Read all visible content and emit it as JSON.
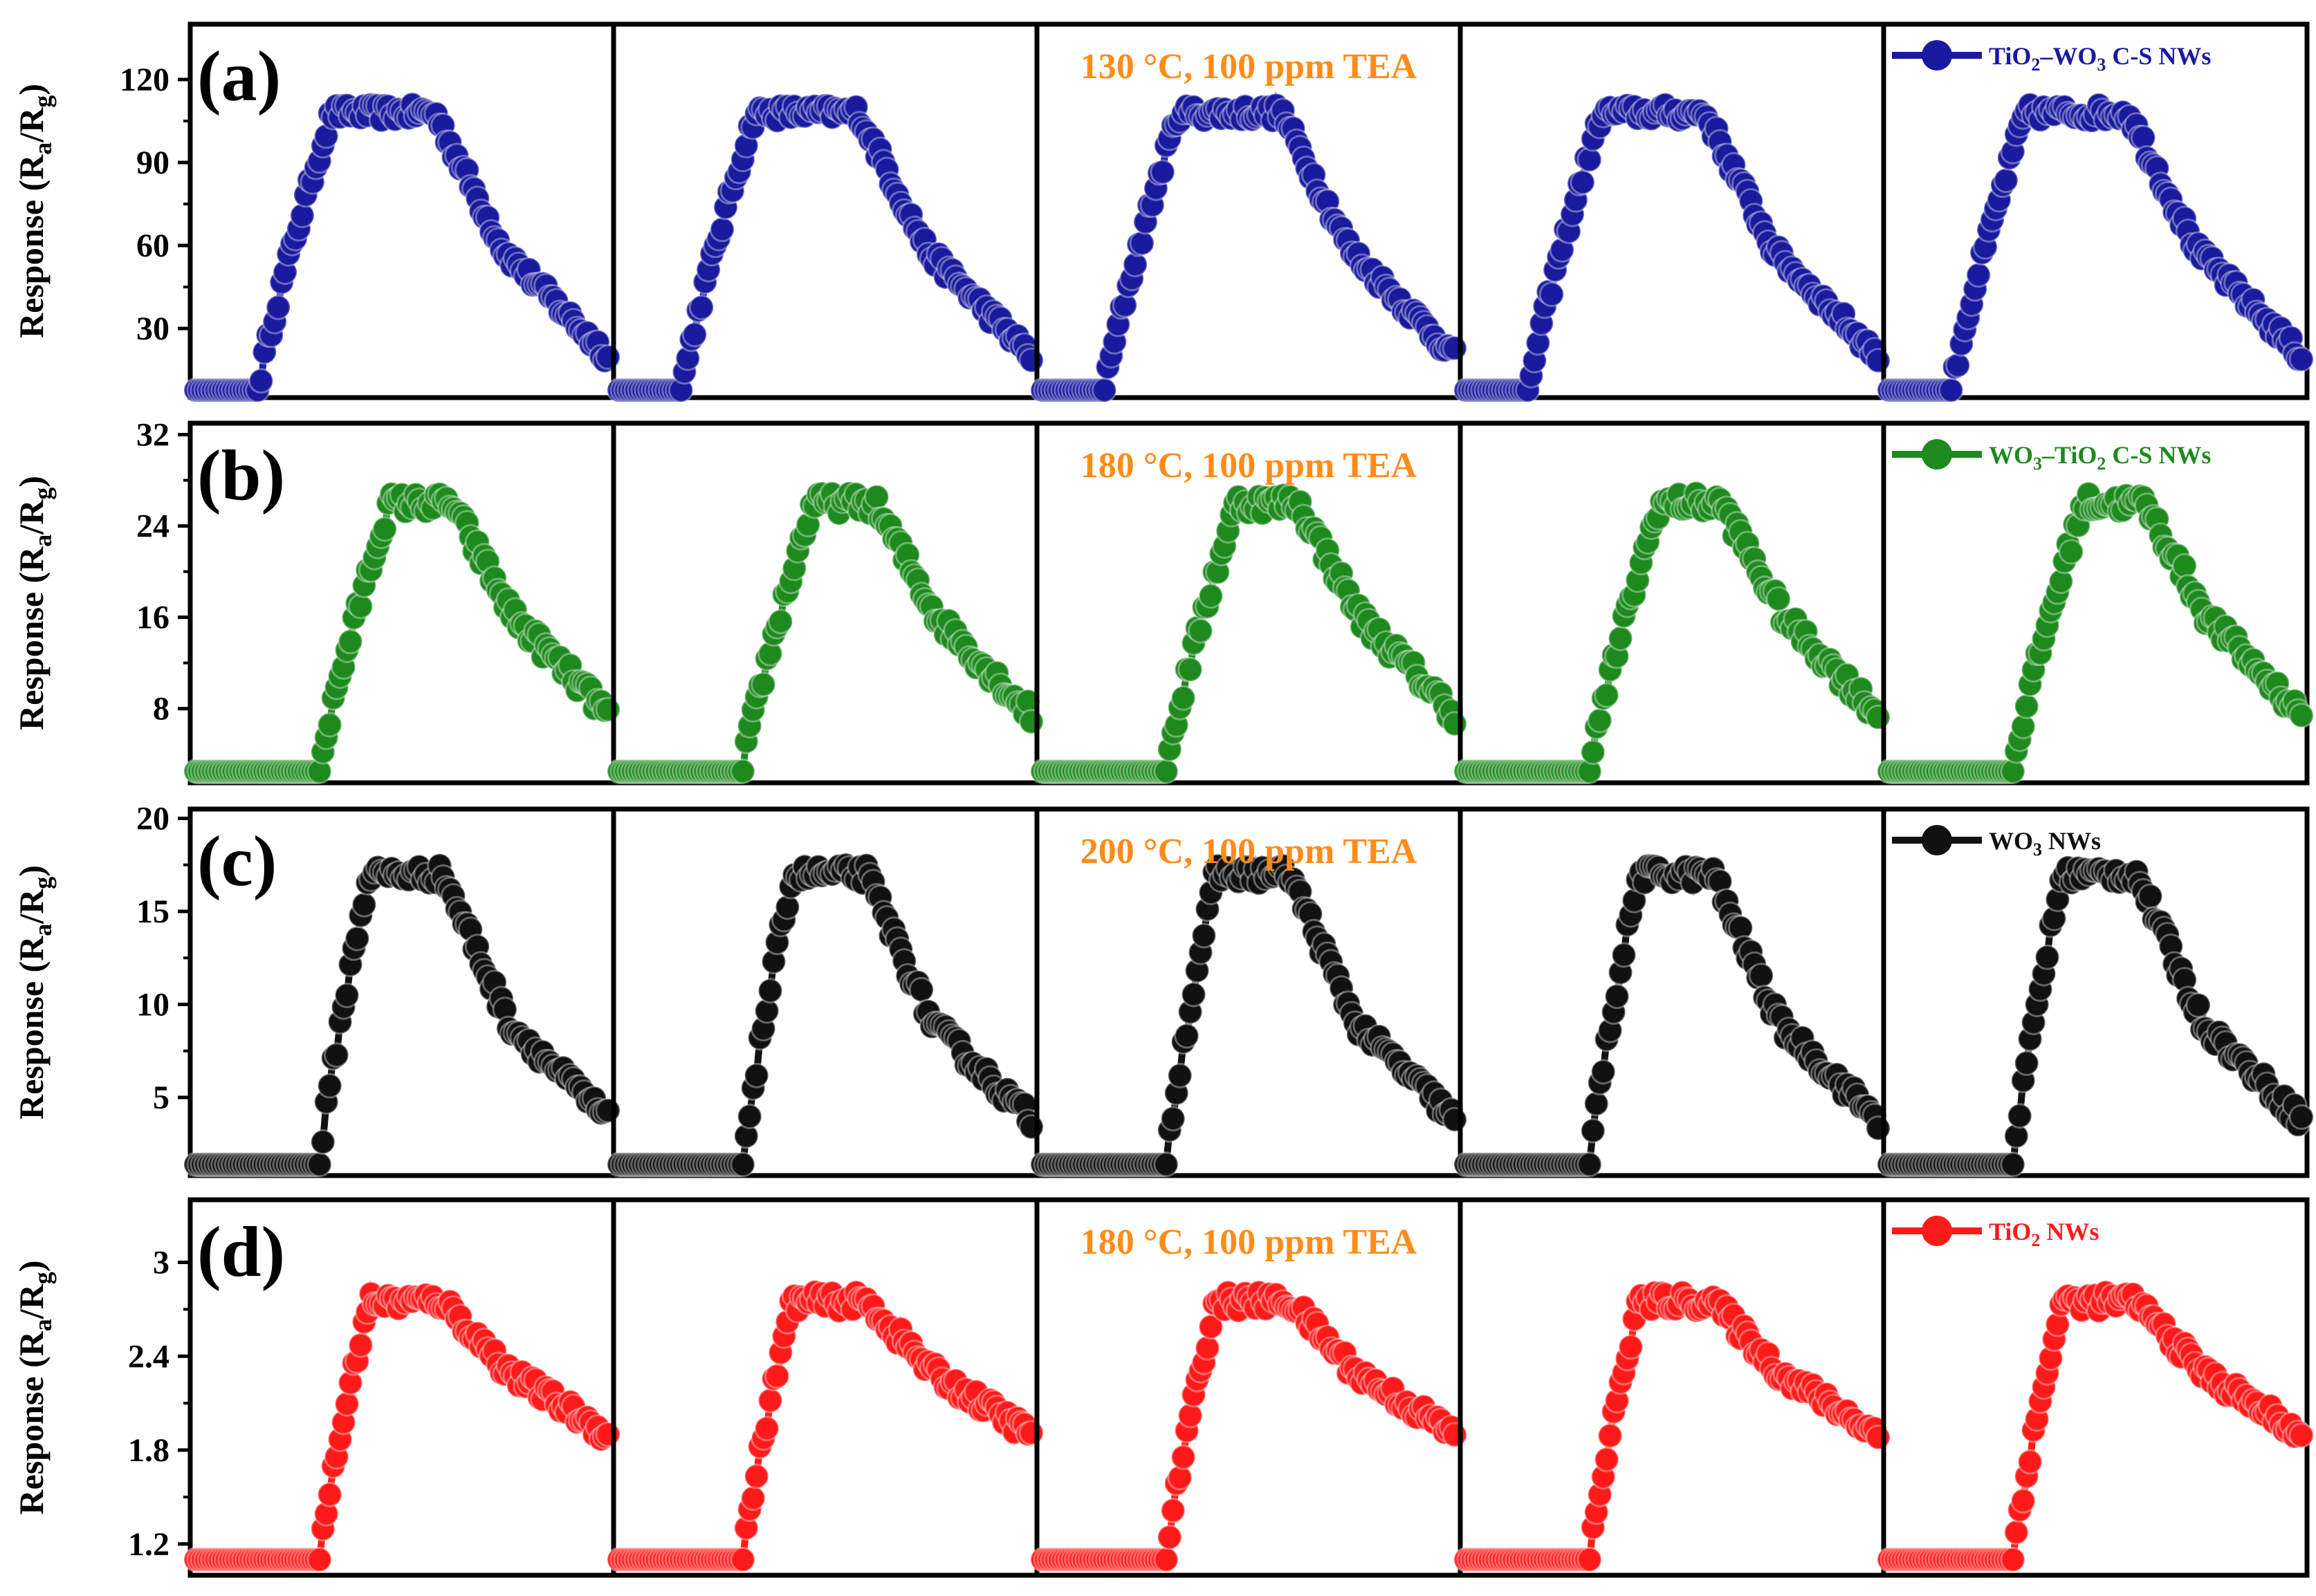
{
  "figure": {
    "background": "#ffffff"
  },
  "chart_data": [
    {
      "type": "line",
      "panel": "(a)",
      "ylabel_main": "Response (R",
      "ylabel_sub1": "a",
      "ylabel_mid": "/R",
      "ylabel_sub2": "g",
      "ylabel_end": ")",
      "condition": "130 °C, 100 ppm TEA",
      "legend": {
        "prefix": "TiO",
        "sub1": "2",
        "mid": "–WO",
        "sub2": "3",
        "suffix": " C-S NWs",
        "placement": "top-right"
      },
      "color": "#1a1a9e",
      "ylim": [
        5,
        140
      ],
      "yticks": [
        30,
        60,
        90,
        120
      ],
      "cycles": 5,
      "series": [
        {
          "name": "TiO2–WO3 C-S NWs",
          "base": 6,
          "rise_start": 0.15,
          "rise_end": 0.33,
          "peak": 108,
          "peak_end": 0.58,
          "fall_to": 58,
          "end": 20,
          "noise": 3
        }
      ]
    },
    {
      "type": "line",
      "panel": "(b)",
      "ylabel_main": "Response (R",
      "ylabel_sub1": "a",
      "ylabel_mid": "/R",
      "ylabel_sub2": "g",
      "ylabel_end": ")",
      "condition": "180 °C, 100 ppm TEA",
      "legend": {
        "prefix": "WO",
        "sub1": "3",
        "mid": "–TiO",
        "sub2": "2",
        "suffix": " C-S NWs",
        "placement": "top-right"
      },
      "color": "#1e8a1e",
      "ylim": [
        1.5,
        33
      ],
      "yticks": [
        8,
        16,
        24,
        32
      ],
      "cycles": 5,
      "series": [
        {
          "name": "WO3–TiO2 C-S NWs",
          "base": 2.5,
          "rise_start": 0.3,
          "rise_end": 0.47,
          "peak": 26,
          "peak_end": 0.62,
          "fall_to": 16,
          "end": 7.5,
          "noise": 0.9
        }
      ]
    },
    {
      "type": "line",
      "panel": "(c)",
      "ylabel_main": "Response (R",
      "ylabel_sub1": "a",
      "ylabel_mid": "/R",
      "ylabel_sub2": "g",
      "ylabel_end": ")",
      "condition": "200 °C, 100 ppm TEA",
      "legend": {
        "prefix": "WO",
        "sub1": "3",
        "mid": "",
        "sub2": "",
        "suffix": " NWs",
        "placement": "top-right"
      },
      "color": "#111111",
      "ylim": [
        0.8,
        20.5
      ],
      "yticks": [
        5,
        10,
        15,
        20
      ],
      "cycles": 5,
      "series": [
        {
          "name": "WO3 NWs",
          "base": 1.4,
          "rise_start": 0.3,
          "rise_end": 0.42,
          "peak": 17,
          "peak_end": 0.6,
          "fall_to": 9,
          "end": 3.8,
          "noise": 0.5
        }
      ]
    },
    {
      "type": "line",
      "panel": "(d)",
      "ylabel_main": "Response (R",
      "ylabel_sub1": "a",
      "ylabel_mid": "/R",
      "ylabel_sub2": "g",
      "ylabel_end": ")",
      "condition": "180 °C, 100 ppm TEA",
      "legend": {
        "prefix": "TiO",
        "sub1": "2",
        "mid": "",
        "sub2": "",
        "suffix": " NWs",
        "placement": "top-right"
      },
      "color": "#ff1a1a",
      "ylim": [
        1.0,
        3.4
      ],
      "yticks": [
        1.2,
        1.8,
        2.4,
        3.0
      ],
      "cycles": 5,
      "series": [
        {
          "name": "TiO2 NWs",
          "base": 1.1,
          "rise_start": 0.3,
          "rise_end": 0.42,
          "peak": 2.75,
          "peak_end": 0.6,
          "fall_to": 2.3,
          "end": 1.9,
          "noise": 0.06
        }
      ]
    }
  ]
}
